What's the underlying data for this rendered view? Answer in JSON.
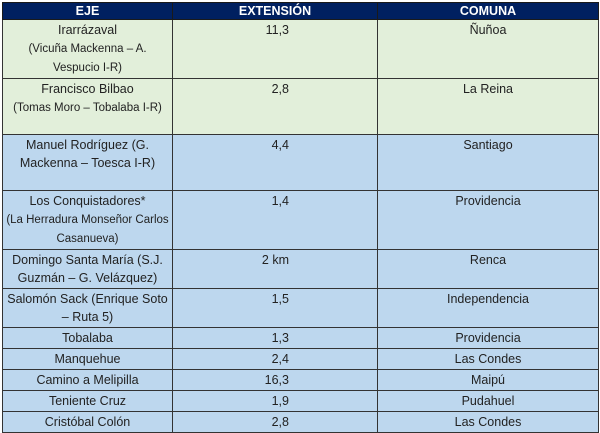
{
  "colors": {
    "header": "#002060",
    "group_a": "#E2EFDA",
    "group_b": "#BDD7EE"
  },
  "headers": [
    "EJE",
    "EXTENSIÓN",
    "COMUNA"
  ],
  "rows": [
    {
      "eje": "Irarrázaval",
      "detail": "(Vicuña Mackenna – A. Vespucio I-R)",
      "ext": "11,3",
      "comuna": "Ñuñoa",
      "group": "green",
      "h": 56
    },
    {
      "eje": "Francisco Bilbao",
      "detail": "(Tomas Moro – Tobalaba I-R)",
      "ext": "2,8",
      "comuna": "La Reina",
      "group": "green",
      "h": 56
    },
    {
      "eje": "Manuel Rodríguez (G. Mackenna – Toesca I-R)",
      "detail": "",
      "ext": "4,4",
      "comuna": "Santiago",
      "group": "blue",
      "h": 56
    },
    {
      "eje": "Los Conquistadores*",
      "detail": "(La Herradura Monseñor Carlos Casanueva)",
      "ext": "1,4",
      "comuna": "Providencia",
      "group": "blue",
      "h": 56
    },
    {
      "eje": "Domingo Santa María (S.J. Guzmán – G. Velázquez)",
      "detail": "",
      "ext": "2 km",
      "comuna": "Renca",
      "group": "blue",
      "h": 36
    },
    {
      "eje": "Salomón Sack (Enrique Soto – Ruta 5)",
      "detail": "",
      "ext": "1,5",
      "comuna": "Independencia",
      "group": "blue",
      "h": 36
    },
    {
      "eje": "Tobalaba",
      "detail": "",
      "ext": "1,3",
      "comuna": "Providencia",
      "group": "blue",
      "h": 18
    },
    {
      "eje": "Manquehue",
      "detail": "",
      "ext": "2,4",
      "comuna": "Las Condes",
      "group": "blue",
      "h": 18
    },
    {
      "eje": "Camino a Melipilla",
      "detail": "",
      "ext": "16,3",
      "comuna": "Maipú",
      "group": "blue",
      "h": 18
    },
    {
      "eje": "Teniente Cruz",
      "detail": "",
      "ext": "1,9",
      "comuna": "Pudahuel",
      "group": "blue",
      "h": 18
    },
    {
      "eje": "Cristóbal Colón",
      "detail": "",
      "ext": "2,8",
      "comuna": "Las Condes",
      "group": "blue",
      "h": 18
    }
  ]
}
